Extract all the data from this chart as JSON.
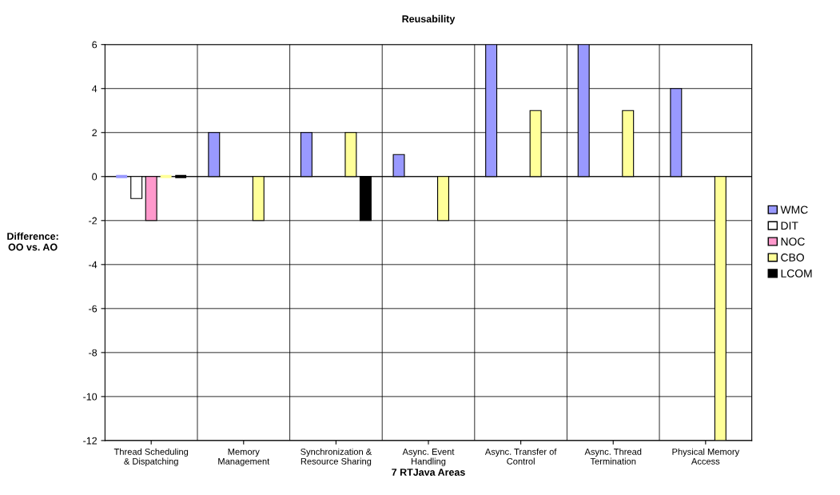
{
  "chart_data": {
    "type": "bar",
    "title": "Reusability",
    "xlabel": "7 RTJava Areas",
    "ylabel": "Difference:\nOO vs. AO",
    "categories": [
      "Thread Scheduling\n& Dispatching",
      "Memory\nManagement",
      "Synchronization &\nResource Sharing",
      "Async. Event\nHandling",
      "Async. Transfer of\nControl",
      "Async. Thread\nTermination",
      "Physical Memory\nAccess"
    ],
    "series": [
      {
        "name": "WMC",
        "color": "#9999ff",
        "values": [
          0,
          2,
          2,
          1,
          6,
          6,
          4
        ]
      },
      {
        "name": "DIT",
        "color": "#ffffff",
        "values": [
          -1,
          null,
          null,
          null,
          null,
          null,
          null
        ]
      },
      {
        "name": "NOC",
        "color": "#ff99cc",
        "values": [
          -2,
          null,
          null,
          null,
          null,
          null,
          null
        ]
      },
      {
        "name": "CBO",
        "color": "#ffff99",
        "values": [
          0,
          -2,
          2,
          -2,
          3,
          3,
          -12
        ]
      },
      {
        "name": "LCOM",
        "color": "#000000",
        "values": [
          0,
          null,
          -2,
          null,
          null,
          null,
          null
        ]
      }
    ],
    "ylim": [
      -12,
      6
    ],
    "yticks": [
      -12,
      -10,
      -8,
      -6,
      -4,
      -2,
      0,
      2,
      4,
      6
    ],
    "grid": true,
    "legend": "right"
  }
}
